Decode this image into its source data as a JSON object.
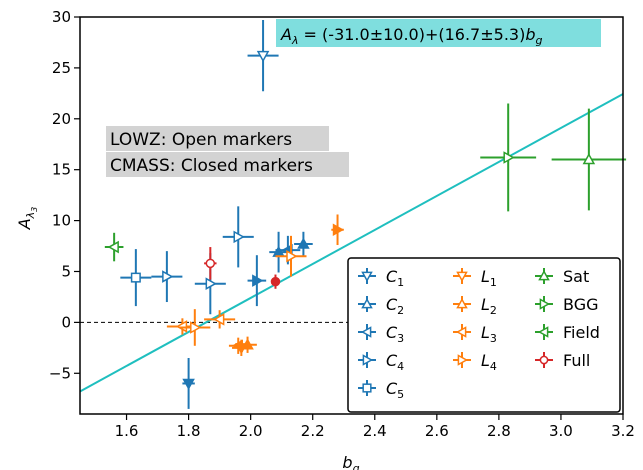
{
  "chart_data": {
    "type": "scatter",
    "xlabel": "b_g",
    "ylabel": "A_λ3",
    "xlim": [
      1.45,
      3.2
    ],
    "ylim": [
      -9,
      30
    ],
    "xticks": [
      1.6,
      1.8,
      2.0,
      2.2,
      2.4,
      2.6,
      2.8,
      3.0,
      3.2
    ],
    "xtick_labels": [
      "1.6",
      "1.8",
      "2.0",
      "2.2",
      "2.4",
      "2.6",
      "2.8",
      "3.0",
      "3.2"
    ],
    "yticks": [
      -5,
      0,
      5,
      10,
      15,
      20,
      25,
      30
    ],
    "ytick_labels": [
      "−5",
      "0",
      "5",
      "10",
      "15",
      "20",
      "25",
      "30"
    ],
    "fit": {
      "label": "A_λ = (-31.0±10.0)+(16.7±5.3)b_g",
      "intercept": -31.0,
      "slope": 16.7,
      "color": "#1fbfbf"
    },
    "zero_line": 0,
    "annotations": [
      "LOWZ: Open markers",
      "CMASS: Closed markers"
    ],
    "legend_position": "lower-right",
    "series": [
      {
        "name": "C1",
        "color": "#1f77b4",
        "marker": "tri_down",
        "points": [
          {
            "x": 1.8,
            "y": -6.0,
            "xerr": 0.02,
            "yerr": 2.5,
            "open": false
          },
          {
            "x": 2.04,
            "y": 26.2,
            "xerr": 0.05,
            "yerr": 3.5,
            "open": true
          }
        ]
      },
      {
        "name": "C2",
        "color": "#1f77b4",
        "marker": "tri_up",
        "points": [
          {
            "x": 2.09,
            "y": 6.9,
            "xerr": 0.03,
            "yerr": 2.0,
            "open": false
          },
          {
            "x": 2.17,
            "y": 7.7,
            "xerr": 0.03,
            "yerr": 1.2,
            "open": false
          }
        ]
      },
      {
        "name": "C3",
        "color": "#1f77b4",
        "marker": "tri_left",
        "points": [
          {
            "x": 2.12,
            "y": 7.1,
            "xerr": 0.04,
            "yerr": 1.4,
            "open": false
          }
        ]
      },
      {
        "name": "C4",
        "color": "#1f77b4",
        "marker": "tri_right",
        "points": [
          {
            "x": 2.02,
            "y": 4.1,
            "xerr": 0.03,
            "yerr": 2.5,
            "open": false
          },
          {
            "x": 1.96,
            "y": 8.4,
            "xerr": 0.05,
            "yerr": 3.0,
            "open": true
          },
          {
            "x": 1.87,
            "y": 3.8,
            "xerr": 0.05,
            "yerr": 3.0,
            "open": true
          },
          {
            "x": 1.73,
            "y": 4.5,
            "xerr": 0.05,
            "yerr": 2.5,
            "open": true
          }
        ]
      },
      {
        "name": "C5",
        "color": "#1f77b4",
        "marker": "square",
        "points": [
          {
            "x": 1.63,
            "y": 4.4,
            "xerr": 0.05,
            "yerr": 2.8,
            "open": true
          }
        ]
      },
      {
        "name": "L1",
        "color": "#ff7f0e",
        "marker": "tri_down",
        "points": [
          {
            "x": 1.97,
            "y": -2.5,
            "xerr": 0.03,
            "yerr": 0.8,
            "open": false
          }
        ]
      },
      {
        "name": "L2",
        "color": "#ff7f0e",
        "marker": "tri_up",
        "points": [
          {
            "x": 1.99,
            "y": -2.2,
            "xerr": 0.03,
            "yerr": 0.8,
            "open": false
          }
        ]
      },
      {
        "name": "L3",
        "color": "#ff7f0e",
        "marker": "tri_left",
        "points": [
          {
            "x": 1.96,
            "y": -2.3,
            "xerr": 0.03,
            "yerr": 0.8,
            "open": false
          },
          {
            "x": 1.9,
            "y": 0.3,
            "xerr": 0.05,
            "yerr": 0.9,
            "open": true
          },
          {
            "x": 1.78,
            "y": -0.4,
            "xerr": 0.05,
            "yerr": 0.8,
            "open": true
          }
        ]
      },
      {
        "name": "L4",
        "color": "#ff7f0e",
        "marker": "tri_right",
        "points": [
          {
            "x": 2.28,
            "y": 9.1,
            "xerr": 0.02,
            "yerr": 1.5,
            "open": false
          },
          {
            "x": 2.13,
            "y": 6.5,
            "xerr": 0.05,
            "yerr": 2.0,
            "open": true
          },
          {
            "x": 1.82,
            "y": -0.5,
            "xerr": 0.05,
            "yerr": 1.8,
            "open": true
          }
        ]
      },
      {
        "name": "Sat",
        "color": "#2ca02c",
        "marker": "tri_up",
        "points": [
          {
            "x": 3.09,
            "y": 16.0,
            "xerr": 0.12,
            "yerr": 5.0,
            "open": true
          }
        ]
      },
      {
        "name": "BGG",
        "color": "#2ca02c",
        "marker": "tri_right",
        "points": [
          {
            "x": 2.83,
            "y": 16.2,
            "xerr": 0.09,
            "yerr": 5.3,
            "open": true
          }
        ]
      },
      {
        "name": "Field",
        "color": "#2ca02c",
        "marker": "tri_left",
        "points": [
          {
            "x": 1.56,
            "y": 7.4,
            "xerr": 0.03,
            "yerr": 1.4,
            "open": true
          }
        ]
      },
      {
        "name": "Full",
        "color": "#d62728",
        "marker": "circle",
        "points": [
          {
            "x": 2.08,
            "y": 4.0,
            "xerr": 0.0,
            "yerr": 0.7,
            "open": false
          },
          {
            "x": 1.87,
            "y": 5.8,
            "xerr": 0.02,
            "yerr": 1.6,
            "open": true
          }
        ]
      }
    ]
  }
}
